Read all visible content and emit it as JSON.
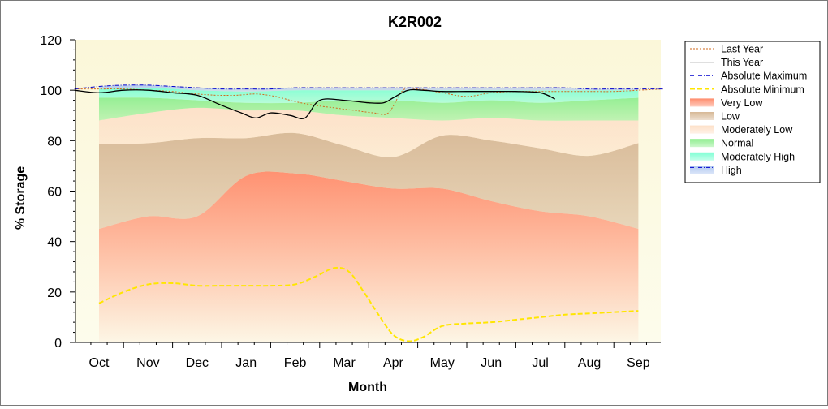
{
  "chart_data": {
    "type": "area",
    "title": "K2R002",
    "xlabel": "Month",
    "ylabel": "% Storage",
    "ylim": [
      0,
      120
    ],
    "yticks": [
      0,
      20,
      40,
      60,
      80,
      100,
      120
    ],
    "categories": [
      "Oct",
      "Nov",
      "Dec",
      "Jan",
      "Feb",
      "Mar",
      "Apr",
      "May",
      "Jun",
      "Jul",
      "Aug",
      "Sep"
    ],
    "grid": false,
    "legend_position": "right",
    "bands": [
      {
        "name": "Very Low",
        "color": "#ff8c6c",
        "lower": [
          0,
          0,
          0,
          0,
          0,
          0,
          0,
          0,
          0,
          0,
          0,
          0
        ],
        "upper": [
          45,
          50,
          50,
          66,
          67,
          64,
          61,
          61,
          56,
          52,
          50,
          45
        ]
      },
      {
        "name": "Low",
        "color": "#d7b896",
        "lower": [
          45,
          50,
          50,
          66,
          67,
          64,
          61,
          61,
          56,
          52,
          50,
          45
        ],
        "upper": [
          78.5,
          79,
          81,
          81,
          83,
          78,
          73.5,
          82,
          80,
          77,
          74,
          79
        ]
      },
      {
        "name": "Moderately Low",
        "color": "#fde0c8",
        "lower": [
          78.5,
          79,
          81,
          81,
          83,
          78,
          73.5,
          82,
          80,
          77,
          74,
          79
        ],
        "upper": [
          88,
          91,
          93,
          92,
          92,
          90,
          89,
          88,
          89,
          88,
          88,
          88
        ]
      },
      {
        "name": "Normal",
        "color": "#90ee90",
        "lower": [
          88,
          91,
          93,
          92,
          92,
          90,
          89,
          88,
          89,
          88,
          88,
          88
        ],
        "upper": [
          97,
          97,
          96,
          95,
          95,
          96,
          96,
          95,
          96,
          95,
          96,
          97
        ]
      },
      {
        "name": "Moderately High",
        "color": "#7fffd4",
        "lower": [
          97,
          97,
          96,
          95,
          95,
          96,
          96,
          95,
          96,
          95,
          96,
          97
        ],
        "upper": [
          100.5,
          101,
          100,
          99.5,
          100,
          100,
          100,
          100,
          100,
          100,
          100,
          100
        ]
      },
      {
        "name": "High",
        "color": "#b0c8f0",
        "lower": [
          100.5,
          101,
          100,
          99.5,
          100,
          100,
          100,
          100,
          100,
          100,
          100,
          100
        ],
        "upper": [
          101.5,
          102,
          101,
          100.5,
          101,
          101,
          101,
          101,
          101,
          101,
          100.5,
          100.5
        ]
      }
    ],
    "series": [
      {
        "name": "Last Year",
        "color": "#d2691e",
        "style": "dotted",
        "x": [
          -0.5,
          0,
          0.5,
          1,
          1.5,
          2,
          2.4,
          2.8,
          3.2,
          3.6,
          4,
          4.4,
          4.8,
          5.2,
          5.6,
          5.9,
          6.2,
          6.5,
          7,
          7.5,
          8,
          8.5,
          9,
          9.5,
          10,
          10.5,
          11,
          11.5
        ],
        "y": [
          100.5,
          100.5,
          100.5,
          100,
          99.5,
          98.5,
          98,
          98,
          98.5,
          97.5,
          95.5,
          94,
          93,
          92,
          91,
          91,
          100,
          100.5,
          99,
          97.5,
          99,
          99.5,
          99.5,
          99.5,
          99.5,
          99.5,
          100,
          100.5
        ]
      },
      {
        "name": "This Year",
        "color": "#000000",
        "style": "solid",
        "x": [
          -0.5,
          0,
          0.5,
          1,
          1.5,
          2,
          2.5,
          2.9,
          3.2,
          3.5,
          3.9,
          4.2,
          4.5,
          5,
          5.5,
          5.8,
          6,
          6.3,
          6.6,
          7,
          7.5,
          8,
          8.5,
          9,
          9.3
        ],
        "y": [
          100,
          99,
          100,
          100,
          99,
          98,
          94,
          91,
          89,
          91,
          90,
          89,
          96,
          96,
          95,
          95,
          97,
          100,
          100,
          99.5,
          99.5,
          99.5,
          99.5,
          99,
          96.5
        ]
      },
      {
        "name": "Absolute Maximum",
        "color": "#0000cd",
        "style": "dashdot",
        "x": [
          -0.5,
          0,
          0.5,
          1,
          1.5,
          2,
          2.5,
          3,
          3.5,
          4,
          4.5,
          5,
          5.5,
          6,
          6.5,
          7,
          7.5,
          8,
          8.5,
          9,
          9.5,
          10,
          10.5,
          11,
          11.5
        ],
        "y": [
          100.5,
          101.5,
          102,
          102,
          101.5,
          101,
          100.5,
          100.5,
          100.5,
          101,
          101,
          101,
          101,
          101,
          101,
          101,
          101,
          101,
          101,
          101,
          101,
          100.5,
          100.5,
          100.5,
          100.5
        ]
      },
      {
        "name": "Absolute Minimum",
        "color": "#ffe600",
        "style": "dashed",
        "x": [
          0,
          0.5,
          1,
          1.5,
          2,
          2.5,
          3,
          3.5,
          4,
          4.4,
          4.8,
          5.1,
          5.4,
          5.7,
          6,
          6.3,
          6.6,
          7,
          7.5,
          8,
          8.5,
          9,
          9.5,
          10,
          10.5,
          11
        ],
        "y": [
          15.5,
          20,
          23,
          23.5,
          22.5,
          22.5,
          22.5,
          22.5,
          23,
          26,
          29.5,
          28,
          20,
          11,
          3,
          0.5,
          2,
          6.5,
          7.5,
          8,
          9,
          10,
          11,
          11.5,
          12,
          12.5
        ]
      }
    ]
  }
}
